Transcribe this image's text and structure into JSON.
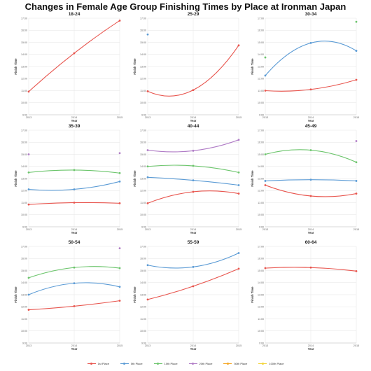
{
  "title": "Changes in Female Age Group Finishing Times by Place at Ironman Japan",
  "colors": {
    "1st Place": "#e8554e",
    "5th Place": "#5b9bd5",
    "10th Place": "#6cc56c",
    "20th Place": "#b07cc6",
    "50th Place": "#f5a623",
    "100th Place": "#f2d43a"
  },
  "legend": [
    "1st Place",
    "5th Place",
    "10th Place",
    "20th Place",
    "50th Place",
    "100th Place"
  ],
  "chart_data": [
    {
      "type": "line",
      "title": "18-24",
      "xlabel": "Year",
      "ylabel": "Finish Time",
      "x": [
        2013,
        2014,
        2015
      ],
      "ylim": [
        9,
        17
      ],
      "grid": true,
      "yticks": [
        "9:00",
        "10:00",
        "11:00",
        "12:00",
        "13:00",
        "14:00",
        "15:00",
        "16:00",
        "17:00"
      ],
      "series": [
        {
          "name": "1st Place",
          "values": [
            10.92,
            14.1,
            16.8
          ]
        }
      ]
    },
    {
      "type": "line",
      "title": "25-29",
      "xlabel": "Year",
      "ylabel": "Finish Time",
      "x": [
        2013,
        2014,
        2015
      ],
      "ylim": [
        9,
        17
      ],
      "grid": true,
      "yticks": [
        "9:00",
        "10:00",
        "11:00",
        "12:00",
        "13:00",
        "14:00",
        "15:00",
        "16:00",
        "17:00"
      ],
      "series": [
        {
          "name": "1st Place",
          "values": [
            10.95,
            11.05,
            14.75
          ]
        },
        {
          "name": "5th Place",
          "values": [
            15.65,
            null,
            null
          ]
        }
      ]
    },
    {
      "type": "line",
      "title": "30-34",
      "xlabel": "Year",
      "ylabel": "Finish Time",
      "x": [
        2013,
        2014,
        2015
      ],
      "ylim": [
        9,
        17
      ],
      "grid": true,
      "yticks": [
        "9:00",
        "10:00",
        "11:00",
        "12:00",
        "13:00",
        "14:00",
        "15:00",
        "16:00",
        "17:00"
      ],
      "series": [
        {
          "name": "1st Place",
          "values": [
            11.0,
            11.1,
            11.9
          ]
        },
        {
          "name": "5th Place",
          "values": [
            12.25,
            14.95,
            14.3
          ]
        },
        {
          "name": "10th Place",
          "values": [
            13.75,
            null,
            16.7
          ]
        }
      ]
    },
    {
      "type": "line",
      "title": "35-39",
      "xlabel": "Year",
      "ylabel": "Finish Time",
      "x": [
        2013,
        2014,
        2015
      ],
      "ylim": [
        9,
        17
      ],
      "grid": true,
      "yticks": [
        "9:00",
        "10:00",
        "11:00",
        "12:00",
        "13:00",
        "14:00",
        "15:00",
        "16:00",
        "17:00"
      ],
      "series": [
        {
          "name": "1st Place",
          "values": [
            10.85,
            11.0,
            10.95
          ]
        },
        {
          "name": "5th Place",
          "values": [
            12.1,
            12.1,
            12.75
          ]
        },
        {
          "name": "10th Place",
          "values": [
            13.5,
            13.7,
            13.45
          ]
        },
        {
          "name": "20th Place",
          "values": [
            15.0,
            null,
            15.1
          ]
        }
      ]
    },
    {
      "type": "line",
      "title": "40-44",
      "xlabel": "Year",
      "ylabel": "Finish Time",
      "x": [
        2013,
        2014,
        2015
      ],
      "ylim": [
        9,
        17
      ],
      "grid": true,
      "yticks": [
        "9:00",
        "10:00",
        "11:00",
        "12:00",
        "13:00",
        "14:00",
        "15:00",
        "16:00",
        "17:00"
      ],
      "series": [
        {
          "name": "1st Place",
          "values": [
            10.95,
            11.9,
            11.75
          ]
        },
        {
          "name": "5th Place",
          "values": [
            13.1,
            12.85,
            12.45
          ]
        },
        {
          "name": "10th Place",
          "values": [
            14.0,
            14.05,
            13.5
          ]
        },
        {
          "name": "20th Place",
          "values": [
            15.35,
            15.3,
            16.2
          ]
        }
      ]
    },
    {
      "type": "line",
      "title": "45-49",
      "xlabel": "Year",
      "ylabel": "Finish Time",
      "x": [
        2013,
        2014,
        2015
      ],
      "ylim": [
        9,
        17
      ],
      "grid": true,
      "yticks": [
        "9:00",
        "10:00",
        "11:00",
        "12:00",
        "13:00",
        "14:00",
        "15:00",
        "16:00",
        "17:00"
      ],
      "series": [
        {
          "name": "1st Place",
          "values": [
            12.45,
            11.55,
            11.75
          ]
        },
        {
          "name": "5th Place",
          "values": [
            12.8,
            12.9,
            12.8
          ]
        },
        {
          "name": "10th Place",
          "values": [
            15.0,
            15.35,
            14.35
          ]
        },
        {
          "name": "20th Place",
          "values": [
            null,
            null,
            16.1
          ]
        }
      ]
    },
    {
      "type": "line",
      "title": "50-54",
      "xlabel": "Year",
      "ylabel": "Finish Time",
      "x": [
        2013,
        2014,
        2015
      ],
      "ylim": [
        9,
        17
      ],
      "grid": true,
      "yticks": [
        "9:00",
        "10:00",
        "11:00",
        "12:00",
        "13:00",
        "14:00",
        "15:00",
        "16:00",
        "17:00"
      ],
      "series": [
        {
          "name": "1st Place",
          "values": [
            11.75,
            12.05,
            12.5
          ]
        },
        {
          "name": "5th Place",
          "values": [
            13.0,
            13.95,
            13.65
          ]
        },
        {
          "name": "10th Place",
          "values": [
            14.4,
            15.25,
            15.2
          ]
        },
        {
          "name": "20th Place",
          "values": [
            null,
            null,
            16.85
          ]
        }
      ]
    },
    {
      "type": "line",
      "title": "55-59",
      "xlabel": "Year",
      "ylabel": "Finish Time",
      "x": [
        2013,
        2014,
        2015
      ],
      "ylim": [
        9,
        17
      ],
      "grid": true,
      "yticks": [
        "9:00",
        "10:00",
        "11:00",
        "12:00",
        "13:00",
        "14:00",
        "15:00",
        "16:00",
        "17:00"
      ],
      "series": [
        {
          "name": "1st Place",
          "values": [
            12.6,
            13.7,
            15.15
          ]
        },
        {
          "name": "5th Place",
          "values": [
            15.45,
            15.3,
            16.45
          ]
        }
      ]
    },
    {
      "type": "line",
      "title": "60-64",
      "xlabel": "Year",
      "ylabel": "Finish Time",
      "x": [
        2013,
        2014,
        2015
      ],
      "ylim": [
        9,
        17
      ],
      "grid": true,
      "yticks": [
        "9:00",
        "10:00",
        "11:00",
        "12:00",
        "13:00",
        "14:00",
        "15:00",
        "16:00",
        "17:00"
      ],
      "series": [
        {
          "name": "1st Place",
          "values": [
            15.2,
            15.25,
            14.95
          ]
        }
      ]
    }
  ]
}
